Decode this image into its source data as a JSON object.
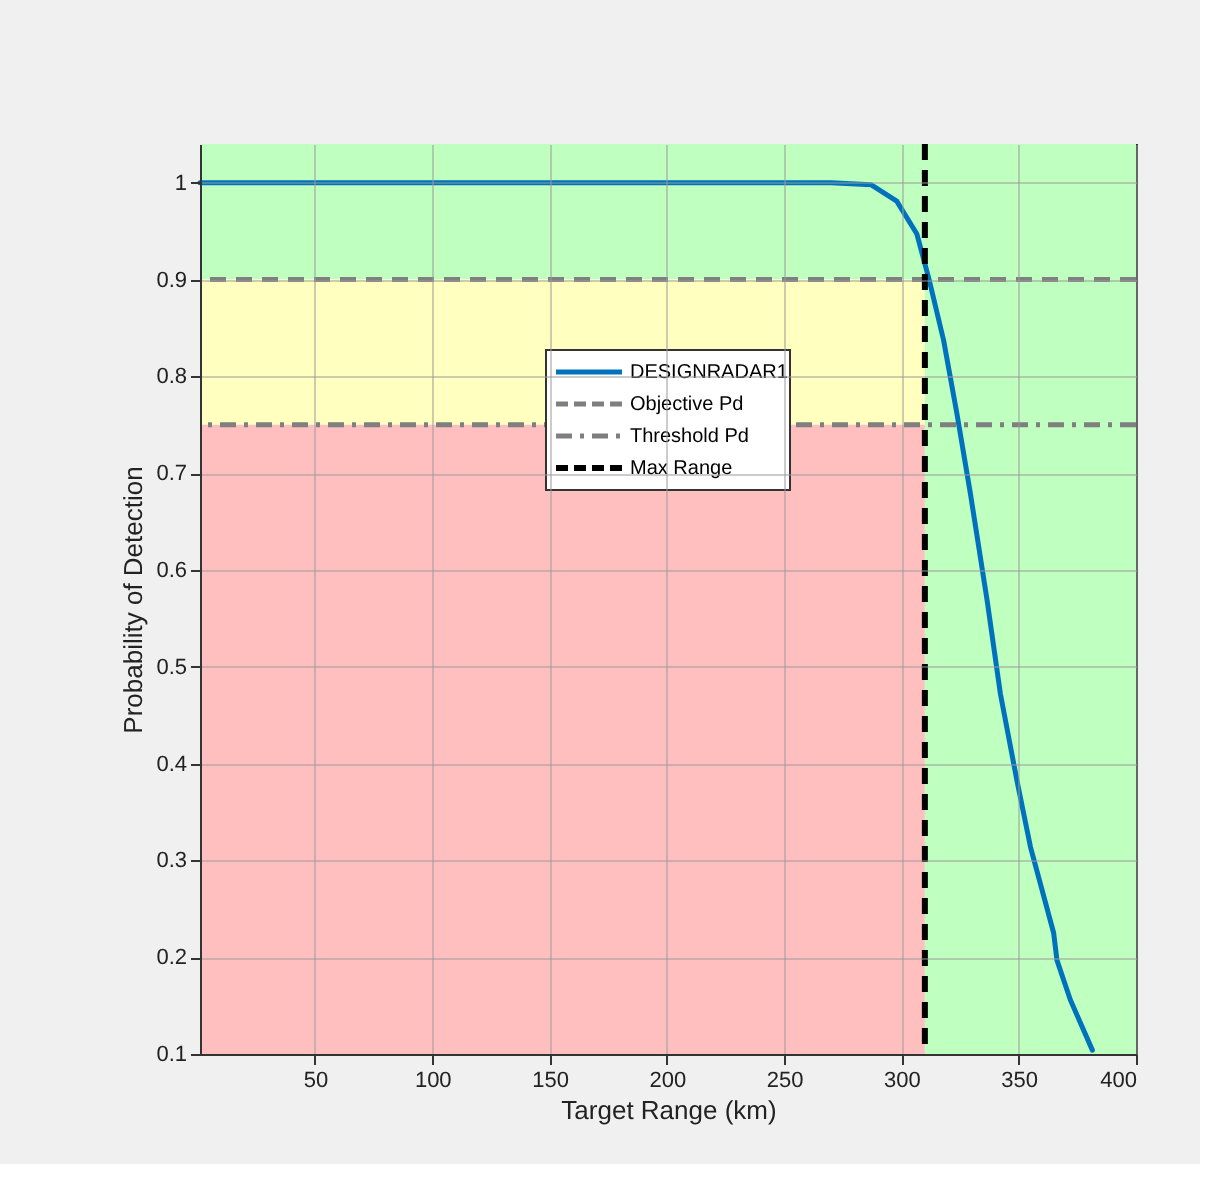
{
  "chart_data": {
    "type": "line",
    "xlabel": "Target Range (km)",
    "ylabel": "Probability of Detection",
    "xlim": [
      1,
      400
    ],
    "xticks": [
      50,
      100,
      150,
      200,
      250,
      300,
      350,
      400
    ],
    "ylim": [
      0.1,
      1.04
    ],
    "yticks": [
      0.1,
      0.2,
      0.3,
      0.4,
      0.5,
      0.6,
      0.7,
      0.8,
      0.9,
      1
    ],
    "grid": true,
    "legend": "top",
    "series": [
      {
        "name": "DESIGNRADAR1",
        "color": "#0072bd",
        "line_style": "solid",
        "x": [
          1,
          100,
          200,
          270,
          287,
          298,
          306.6,
          311.8,
          318,
          323.7,
          329.4,
          336.5,
          342.2,
          349.2,
          355,
          364.9,
          366.3,
          372,
          381.4
        ],
        "values": [
          1,
          1,
          1,
          1,
          0.998,
          0.981,
          0.947,
          0.9,
          0.837,
          0.761,
          0.679,
          0.569,
          0.472,
          0.383,
          0.314,
          0.225,
          0.197,
          0.156,
          0.104
        ]
      }
    ],
    "ref_lines": [
      {
        "axis": "y",
        "value": 0.9,
        "label": "Objective Pd",
        "color": "#7f7f7f",
        "line_style": "dashed"
      },
      {
        "axis": "y",
        "value": 0.75,
        "label": "Threshold Pd",
        "color": "#7f7f7f",
        "line_style": "dashdot"
      },
      {
        "axis": "x",
        "value": 310,
        "label": "Max Range",
        "color": "#000000",
        "line_style": "dashed"
      }
    ],
    "bands": [
      {
        "axis": "y",
        "from": 0.9,
        "to": 1.04,
        "color": "#bfffbf"
      },
      {
        "axis": "y",
        "from": 0.75,
        "to": 0.9,
        "color": "#ffffbf"
      },
      {
        "axis": "y",
        "from": 0.1,
        "to": 0.75,
        "color": "#ffbfbf"
      },
      {
        "axis": "x",
        "from": 310,
        "to": 400,
        "color": "#bfffbf"
      }
    ]
  }
}
